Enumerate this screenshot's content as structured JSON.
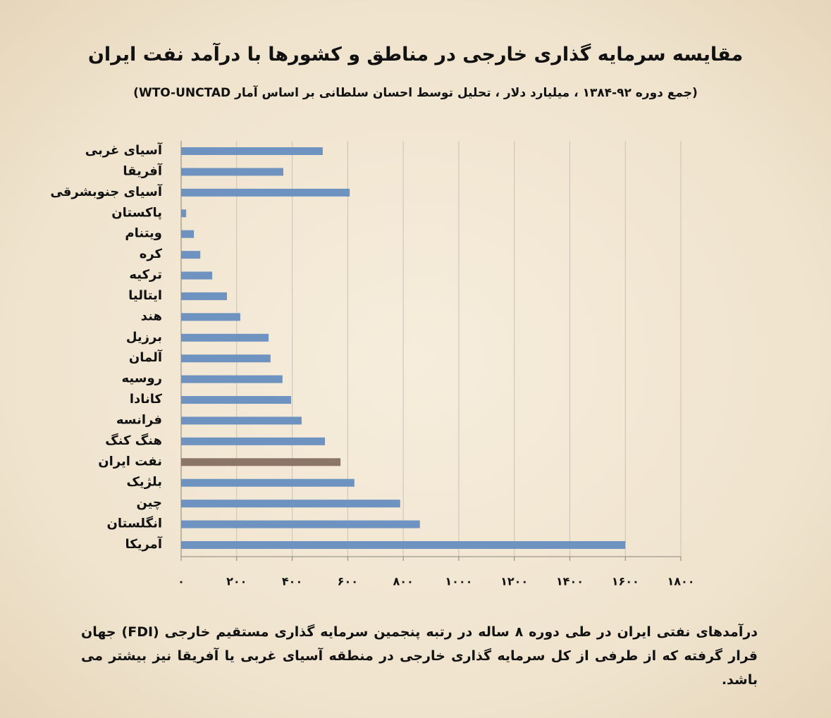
{
  "chart_data": {
    "type": "bar",
    "orientation": "horizontal",
    "title": "مقایسه سرمایه گذاری خارجی در مناطق و کشورها با درآمد نفت ایران",
    "subtitle": "(جمع دوره ۹۲-۱۳۸۴ ، میلیارد دلار ، تحلیل توسط احسان سلطانی بر اساس آمار WTO-UNCTAD)",
    "note": "درآمدهای نفتی ایران در طی دوره ۸ ساله در رتبه پنجمین سرمایه گذاری مستقیم خارجی (FDI) جهان قرار گرفته که از طرفی از کل سرمایه گذاری خارجی در منطقه آسیای غربی یا آفریقا نیز بیشتر می باشد.",
    "categories": [
      "آسیای غربی",
      "آفریقا",
      "آسیای جنوبشرقی",
      "پاکستان",
      "ویتنام",
      "کره",
      "ترکیه",
      "ایتالیا",
      "هند",
      "برزیل",
      "آلمان",
      "روسیه",
      "کانادا",
      "فرانسه",
      "هنگ کنگ",
      "نفت ایران",
      "بلژیک",
      "چین",
      "انگلستان",
      "آمریکا"
    ],
    "values": [
      510,
      368,
      607,
      18,
      46,
      69,
      112,
      165,
      213,
      315,
      322,
      365,
      396,
      434,
      518,
      574,
      624,
      789,
      860,
      1600
    ],
    "colors": [
      "#6e93c0",
      "#6e93c0",
      "#6e93c0",
      "#6e93c0",
      "#6e93c0",
      "#6e93c0",
      "#6e93c0",
      "#6e93c0",
      "#6e93c0",
      "#6e93c0",
      "#6e93c0",
      "#6e93c0",
      "#6e93c0",
      "#6e93c0",
      "#6e93c0",
      "#8a7566",
      "#6e93c0",
      "#6e93c0",
      "#6e93c0",
      "#6e93c0"
    ],
    "xlim": [
      0,
      1800
    ],
    "xticks": [
      {
        "value": 0,
        "label": "۰"
      },
      {
        "value": 200,
        "label": "۲۰۰"
      },
      {
        "value": 400,
        "label": "۴۰۰"
      },
      {
        "value": 600,
        "label": "۶۰۰"
      },
      {
        "value": 800,
        "label": "۸۰۰"
      },
      {
        "value": 1000,
        "label": "۱۰۰۰"
      },
      {
        "value": 1200,
        "label": "۱۲۰۰"
      },
      {
        "value": 1400,
        "label": "۱۴۰۰"
      },
      {
        "value": 1600,
        "label": "۱۶۰۰"
      },
      {
        "value": 1800,
        "label": "۱۸۰۰"
      }
    ],
    "grid": true
  }
}
